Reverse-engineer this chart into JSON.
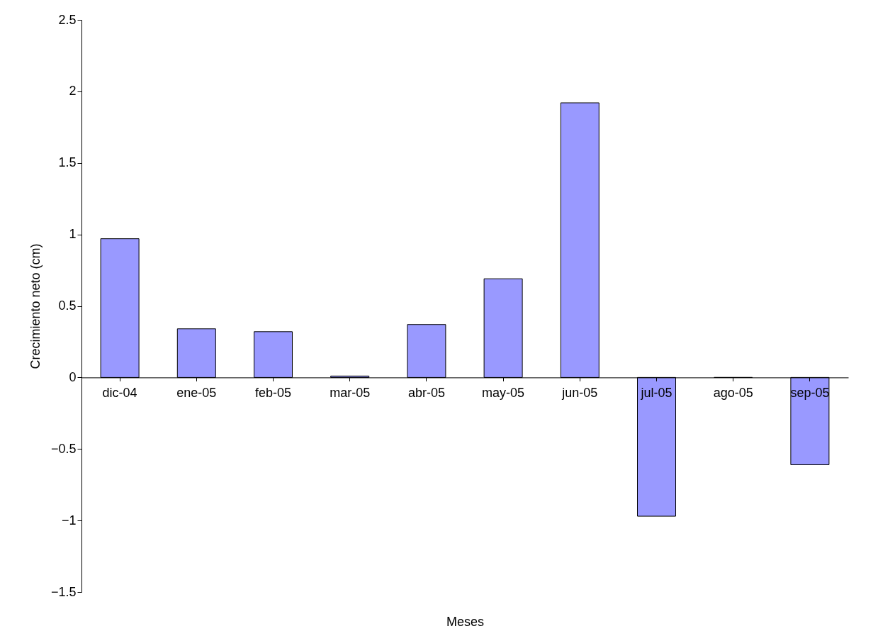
{
  "chart_data": {
    "type": "bar",
    "xlabel": "Meses",
    "ylabel": "Crecimiento neto (cm)",
    "categories": [
      "dic-04",
      "ene-05",
      "feb-05",
      "mar-05",
      "abr-05",
      "may-05",
      "jun-05",
      "jul-05",
      "ago-05",
      "sep-05"
    ],
    "values": [
      0.97,
      0.34,
      0.32,
      0.01,
      0.37,
      0.69,
      1.92,
      -0.97,
      0,
      -0.61
    ],
    "color": "#9999ff",
    "ylim": [
      -1.5,
      2.5
    ],
    "yticks": [
      -1.5,
      -1,
      -0.5,
      0,
      0.5,
      1,
      1.5,
      2,
      2.5
    ],
    "grid": false
  }
}
